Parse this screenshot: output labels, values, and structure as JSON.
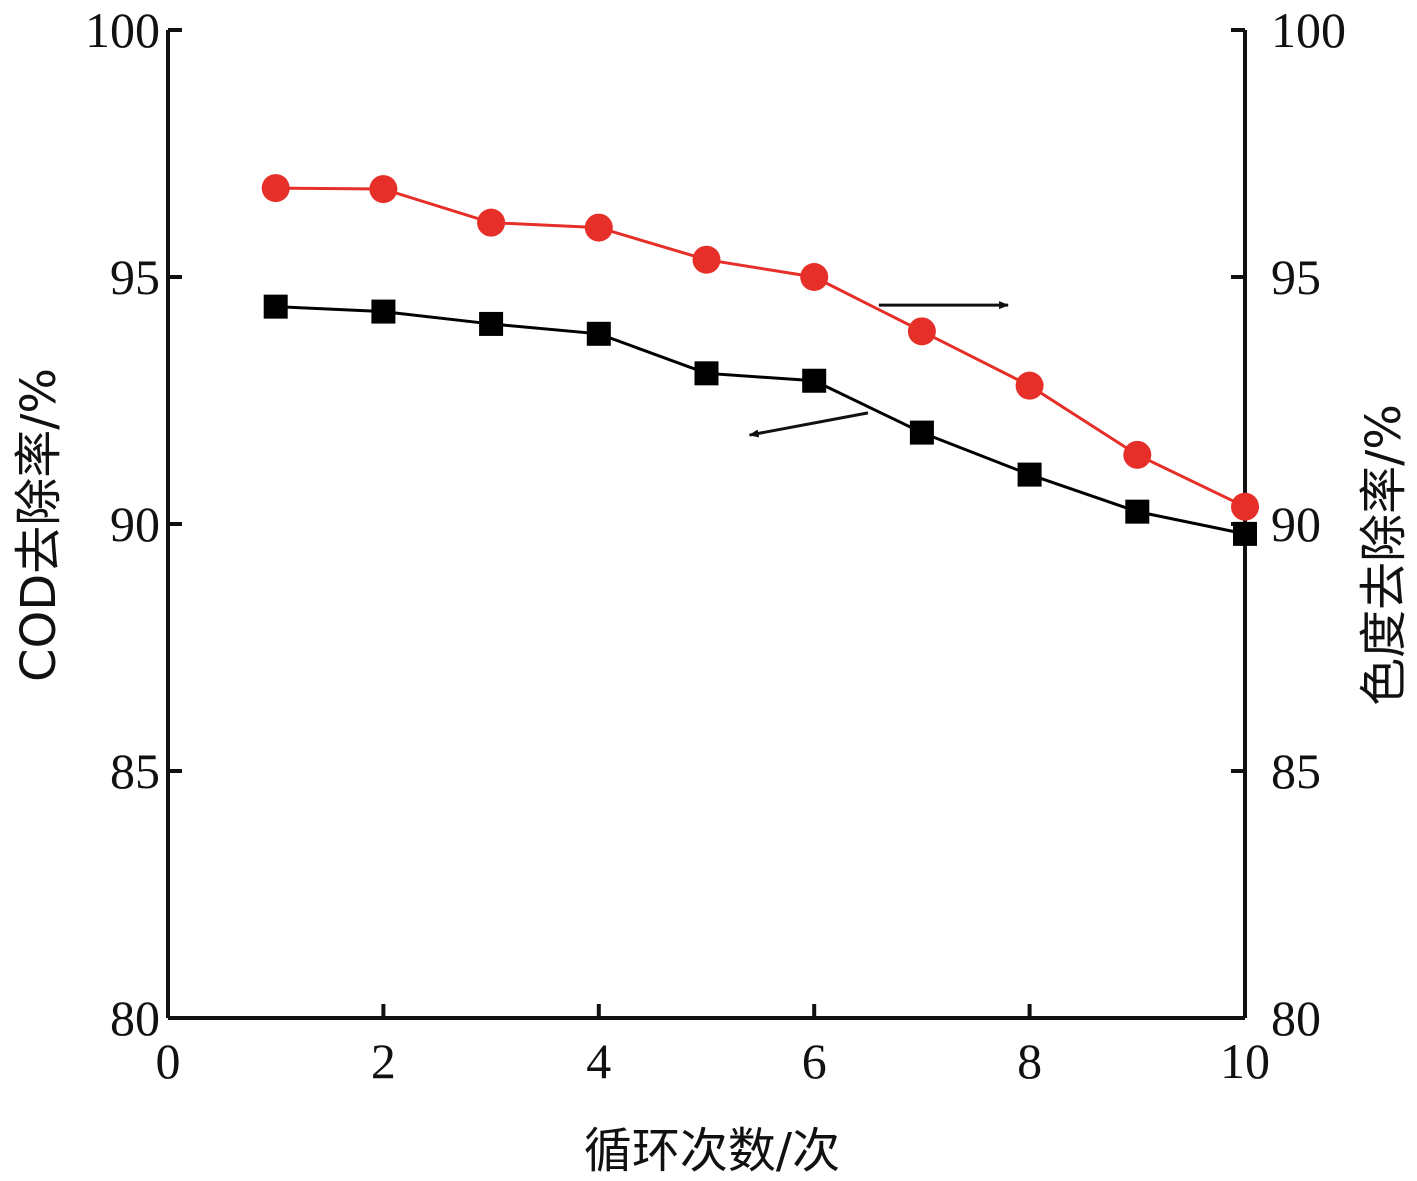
{
  "chart_data": {
    "type": "line",
    "title": "",
    "xlabel": "循环次数/次",
    "ylabel_left": "COD去除率/%",
    "ylabel_right": "色度去除率/%",
    "xlim": [
      0,
      10
    ],
    "ylim": [
      80,
      100
    ],
    "y2lim": [
      80,
      100
    ],
    "x_ticks": [
      "0",
      "2",
      "4",
      "6",
      "8",
      "10"
    ],
    "y_ticks": [
      "80",
      "85",
      "90",
      "95",
      "100"
    ],
    "y2_ticks": [
      "80",
      "85",
      "90",
      "95",
      "100"
    ],
    "grid": false,
    "legend": "none",
    "x": [
      1,
      2,
      3,
      4,
      5,
      6,
      7,
      8,
      9,
      10
    ],
    "series": [
      {
        "axis": "left",
        "marker": "square",
        "color": "#000000",
        "values": [
          94.4,
          94.3,
          94.05,
          93.85,
          93.05,
          92.9,
          91.85,
          91.0,
          90.25,
          89.8
        ]
      },
      {
        "axis": "right",
        "marker": "circle",
        "color": "#e52f28",
        "values": [
          96.8,
          96.78,
          96.1,
          96.0,
          95.35,
          95.0,
          93.9,
          92.8,
          91.4,
          90.35
        ]
      }
    ],
    "annotations": [
      {
        "type": "arrow",
        "points_to": "right-axis",
        "from": [
          6.6,
          94.43
        ],
        "to": [
          7.8,
          94.43
        ]
      },
      {
        "type": "arrow",
        "points_to": "left-axis",
        "from": [
          6.5,
          92.25
        ],
        "to": [
          5.4,
          91.8
        ]
      }
    ]
  }
}
